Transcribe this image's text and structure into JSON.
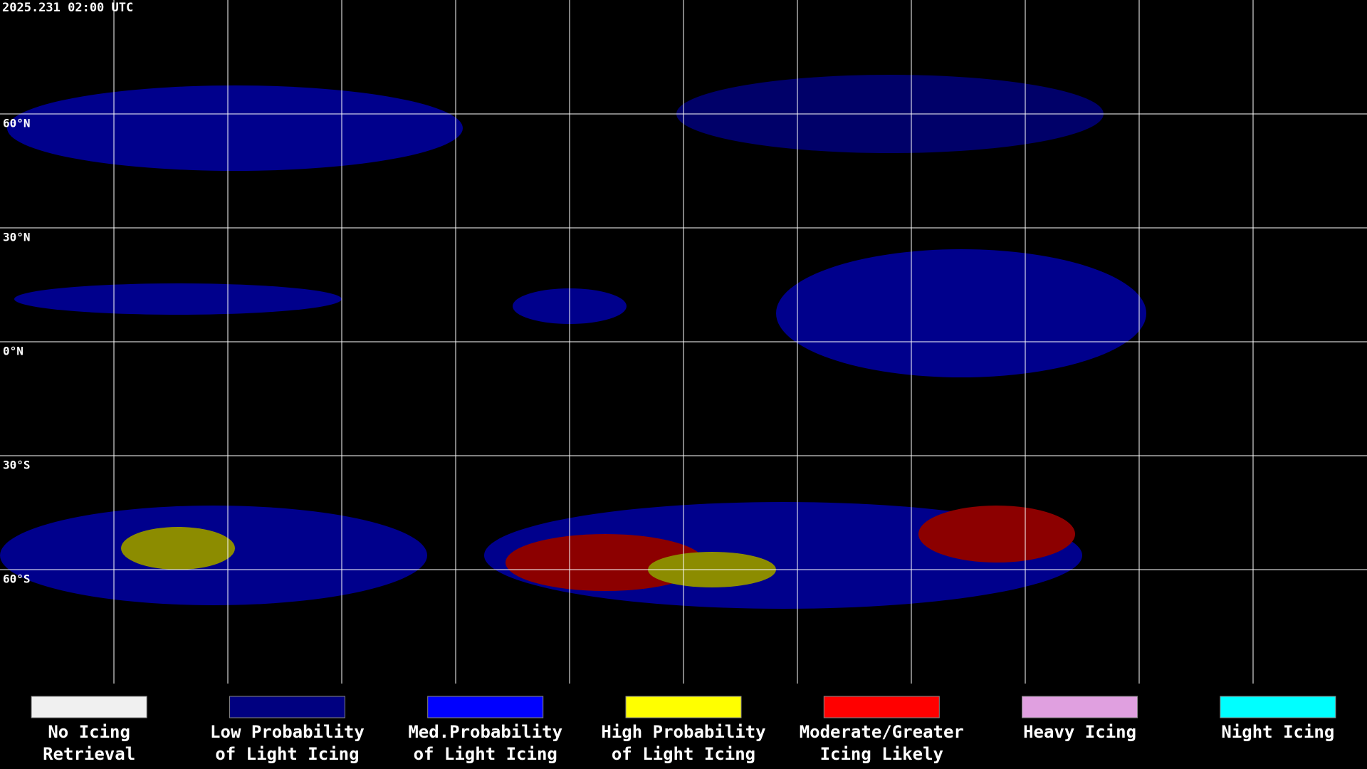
{
  "header": {
    "timestamp": "2025.231 02:00 UTC"
  },
  "map": {
    "latitude_labels": [
      "60°N",
      "30°N",
      "0°N",
      "30°S",
      "60°S"
    ]
  },
  "legend": [
    {
      "lines": [
        "No Icing",
        "Retrieval"
      ],
      "color": "#f0f0f0"
    },
    {
      "lines": [
        "Low Probability",
        "of Light Icing"
      ],
      "color": "#000080"
    },
    {
      "lines": [
        "Med.Probability",
        "of Light Icing"
      ],
      "color": "#0000ff"
    },
    {
      "lines": [
        "High Probability",
        "of Light Icing"
      ],
      "color": "#ffff00"
    },
    {
      "lines": [
        "Moderate/Greater",
        "Icing Likely"
      ],
      "color": "#ff0000"
    },
    {
      "lines": [
        "Heavy Icing"
      ],
      "color": "#e0a0e0"
    },
    {
      "lines": [
        "Night Icing"
      ],
      "color": "#00ffff"
    }
  ]
}
